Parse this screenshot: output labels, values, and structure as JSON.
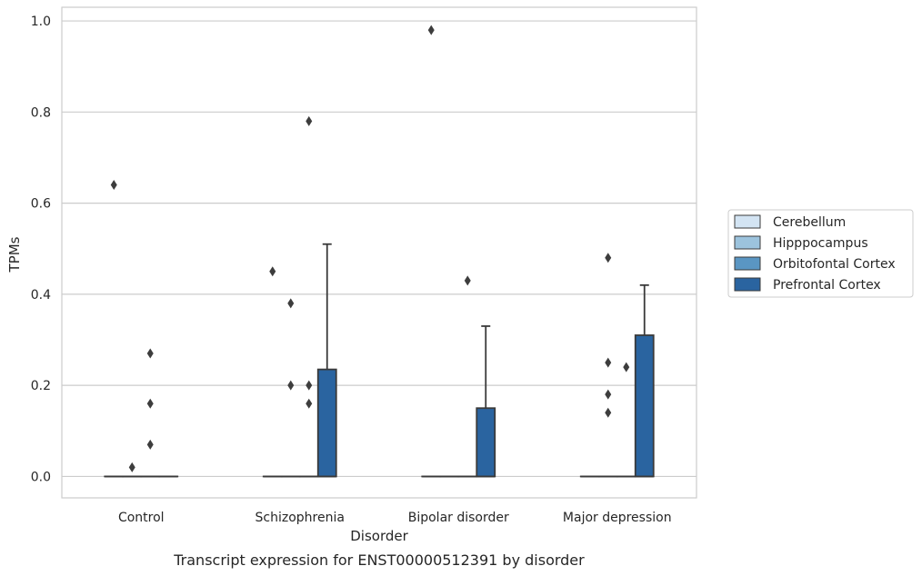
{
  "chart_data": {
    "type": "box",
    "title": "",
    "caption": "Transcript expression for ENST00000512391 by disorder",
    "xlabel": "Disorder",
    "ylabel": "TPMs",
    "ylim": [
      -0.047,
      1.03
    ],
    "yticks": [
      "0.0",
      "0.2",
      "0.4",
      "0.6",
      "0.8",
      "1.0"
    ],
    "ytick_values": [
      0.0,
      0.2,
      0.4,
      0.6,
      0.8,
      1.0
    ],
    "grid": true,
    "legend_position": "right",
    "categories": [
      "Control",
      "Schizophrenia",
      "Bipolar disorder",
      "Major depression"
    ],
    "series": [
      {
        "name": "Cerebellum",
        "color": "#d3e4f3",
        "boxes": [
          {
            "q1": 0,
            "median": 0,
            "q3": 0,
            "whisker_low": 0,
            "whisker_high": 0,
            "outliers": [
              0.64
            ]
          },
          {
            "q1": 0,
            "median": 0,
            "q3": 0,
            "whisker_low": 0,
            "whisker_high": 0,
            "outliers": [
              0.45
            ]
          },
          {
            "q1": 0,
            "median": 0,
            "q3": 0,
            "whisker_low": 0,
            "whisker_high": 0,
            "outliers": [
              0.98
            ]
          },
          {
            "q1": 0,
            "median": 0,
            "q3": 0,
            "whisker_low": 0,
            "whisker_high": 0,
            "outliers": []
          }
        ]
      },
      {
        "name": "Hipppocampus",
        "color": "#9cc3dd",
        "boxes": [
          {
            "q1": 0,
            "median": 0,
            "q3": 0,
            "whisker_low": 0,
            "whisker_high": 0,
            "outliers": [
              0.02
            ]
          },
          {
            "q1": 0,
            "median": 0,
            "q3": 0,
            "whisker_low": 0,
            "whisker_high": 0,
            "outliers": [
              0.38,
              0.2
            ]
          },
          {
            "q1": 0,
            "median": 0,
            "q3": 0,
            "whisker_low": 0,
            "whisker_high": 0,
            "outliers": []
          },
          {
            "q1": 0,
            "median": 0,
            "q3": 0,
            "whisker_low": 0,
            "whisker_high": 0,
            "outliers": [
              0.25,
              0.18,
              0.14,
              0.48
            ]
          }
        ]
      },
      {
        "name": "Orbitofontal Cortex",
        "color": "#5a96c3",
        "boxes": [
          {
            "q1": 0,
            "median": 0,
            "q3": 0,
            "whisker_low": 0,
            "whisker_high": 0,
            "outliers": [
              0.27,
              0.16,
              0.07
            ]
          },
          {
            "q1": 0,
            "median": 0,
            "q3": 0,
            "whisker_low": 0,
            "whisker_high": 0,
            "outliers": [
              0.78,
              0.2,
              0.16
            ]
          },
          {
            "q1": 0,
            "median": 0,
            "q3": 0,
            "whisker_low": 0,
            "whisker_high": 0,
            "outliers": [
              0.43
            ]
          },
          {
            "q1": 0,
            "median": 0,
            "q3": 0,
            "whisker_low": 0,
            "whisker_high": 0,
            "outliers": [
              0.24
            ]
          }
        ]
      },
      {
        "name": "Prefrontal Cortex",
        "color": "#2a64a0",
        "boxes": [
          {
            "q1": 0,
            "median": 0,
            "q3": 0,
            "whisker_low": 0,
            "whisker_high": 0,
            "outliers": []
          },
          {
            "q1": 0,
            "median": 0,
            "q3": 0.235,
            "whisker_low": 0,
            "whisker_high": 0.51,
            "outliers": []
          },
          {
            "q1": 0,
            "median": 0,
            "q3": 0.15,
            "whisker_low": 0,
            "whisker_high": 0.33,
            "outliers": []
          },
          {
            "q1": 0,
            "median": 0,
            "q3": 0.31,
            "whisker_low": 0,
            "whisker_high": 0.42,
            "outliers": []
          }
        ]
      }
    ]
  }
}
